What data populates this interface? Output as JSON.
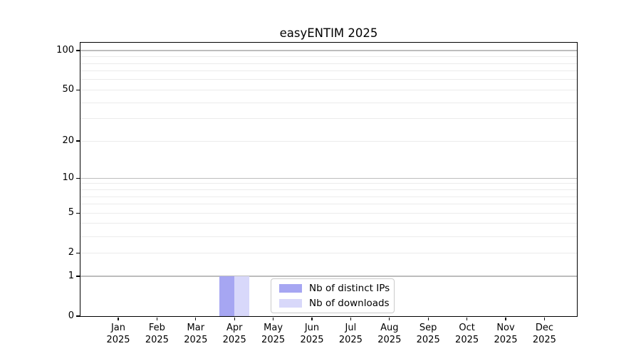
{
  "title": "easyENTIM 2025",
  "chart_data": {
    "type": "bar",
    "title": "easyENTIM 2025",
    "x_categories": [
      "Jan",
      "Feb",
      "Mar",
      "Apr",
      "May",
      "Jun",
      "Jul",
      "Aug",
      "Sep",
      "Oct",
      "Nov",
      "Dec"
    ],
    "x_year": "2025",
    "series": [
      {
        "name": "Nb of distinct IPs",
        "color": "#a6a6f2",
        "values": [
          0,
          0,
          0,
          1,
          0,
          0,
          0,
          0,
          0,
          0,
          0,
          0
        ]
      },
      {
        "name": "Nb of downloads",
        "color": "#d8d8fa",
        "values": [
          0,
          0,
          0,
          1,
          0,
          0,
          0,
          0,
          0,
          0,
          0,
          0
        ]
      }
    ],
    "y_scale": "log1p",
    "ylim": [
      0,
      115
    ],
    "y_ticks": [
      0,
      1,
      2,
      5,
      10,
      20,
      50,
      100
    ],
    "y_major_gridlines": [
      1,
      10,
      100
    ],
    "y_minor_gridlines": [
      2,
      3,
      4,
      5,
      6,
      7,
      8,
      9,
      20,
      30,
      40,
      50,
      60,
      70,
      80,
      90
    ],
    "grid": true,
    "legend_position": "lower-center",
    "colors": {
      "major_grid": "#bdbdbd",
      "minor_grid": "#ebebeb",
      "axis": "#000000",
      "text": "#000000"
    }
  }
}
